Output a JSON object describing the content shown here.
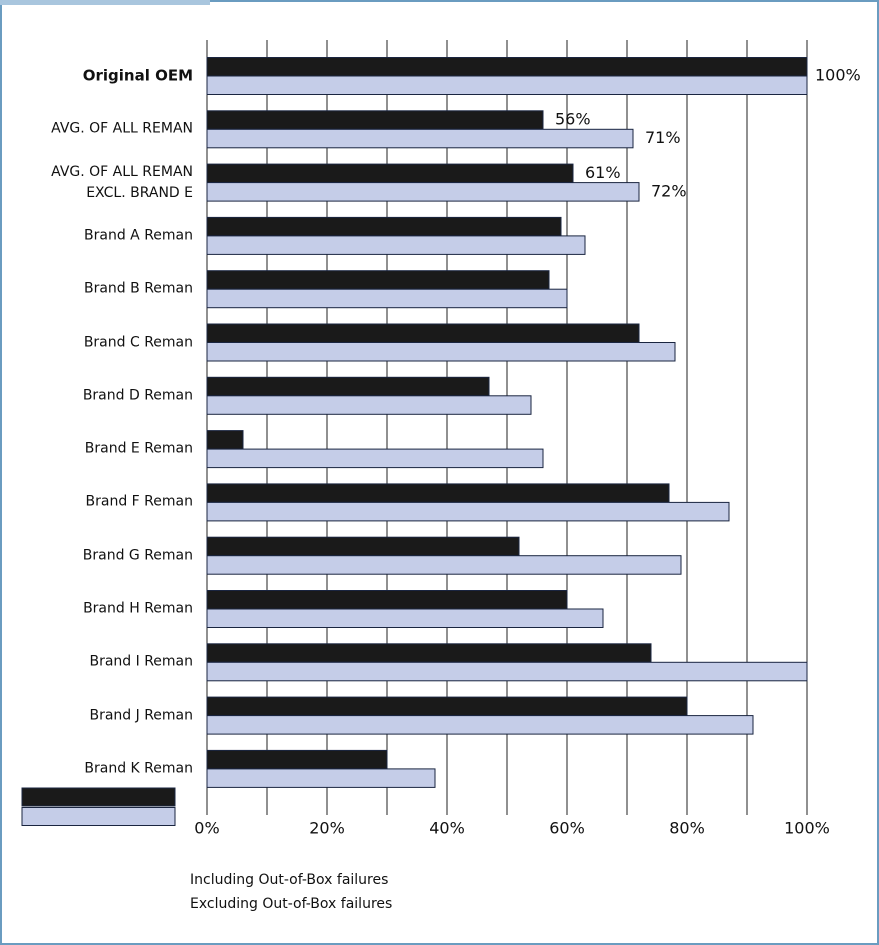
{
  "chart_data": {
    "type": "barh",
    "categories": [
      "Original OEM",
      "AVG. OF ALL REMAN",
      "AVG. OF ALL REMAN\nEXCL. BRAND E",
      "Brand A Reman",
      "Brand B Reman",
      "Brand C Reman",
      "Brand D Reman",
      "Brand E Reman",
      "Brand F Reman",
      "Brand G Reman",
      "Brand H Reman",
      "Brand I Reman",
      "Brand J Reman",
      "Brand K Reman"
    ],
    "series": [
      {
        "name": "Including Out-of-Box failures",
        "color": "#1a1a1a",
        "values": [
          100,
          56,
          61,
          59,
          57,
          72,
          47,
          6,
          77,
          52,
          60,
          74,
          80,
          30
        ],
        "value_labels": [
          "100%",
          "56%",
          "61%",
          null,
          null,
          null,
          null,
          null,
          null,
          null,
          null,
          null,
          null,
          null
        ]
      },
      {
        "name": "Excluding Out-of-Box failures",
        "color": "#c5cde8",
        "values": [
          100,
          71,
          72,
          63,
          60,
          78,
          54,
          56,
          87,
          79,
          66,
          100,
          91,
          38
        ],
        "value_labels": [
          null,
          "71%",
          "72%",
          null,
          null,
          null,
          null,
          null,
          null,
          null,
          null,
          null,
          null,
          null
        ]
      }
    ],
    "xlim": [
      0,
      100
    ],
    "xticks": [
      {
        "value": 0,
        "label": "0%"
      },
      {
        "value": 20,
        "label": "20%"
      },
      {
        "value": 40,
        "label": "40%"
      },
      {
        "value": 60,
        "label": "60%"
      },
      {
        "value": 80,
        "label": "80%"
      },
      {
        "value": 100,
        "label": "100%"
      }
    ],
    "x_minor_ticks": [
      10,
      30,
      50,
      70,
      90
    ],
    "grid": true
  }
}
